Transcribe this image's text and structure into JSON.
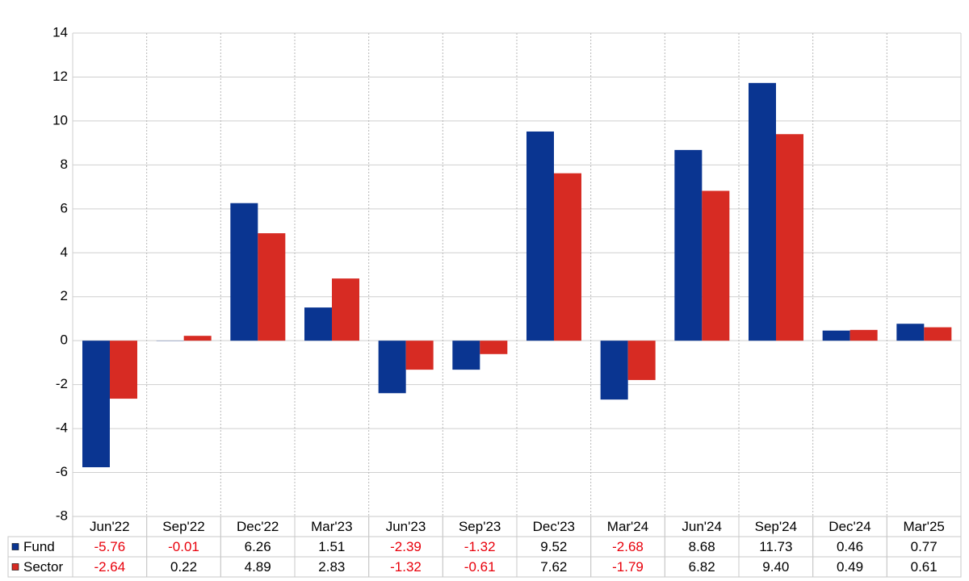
{
  "chart_data": {
    "type": "bar",
    "categories": [
      "Jun'22",
      "Sep'22",
      "Dec'22",
      "Mar'23",
      "Jun'23",
      "Sep'23",
      "Dec'23",
      "Mar'24",
      "Jun'24",
      "Sep'24",
      "Dec'24",
      "Mar'25"
    ],
    "series": [
      {
        "name": "Fund",
        "color": "#0a3591",
        "values": [
          -5.76,
          -0.01,
          6.26,
          1.51,
          -2.39,
          -1.32,
          9.52,
          -2.68,
          8.68,
          11.73,
          0.46,
          0.77
        ],
        "value_labels": [
          "-5.76",
          "-0.01",
          "6.26",
          "1.51",
          "-2.39",
          "-1.32",
          "9.52",
          "-2.68",
          "8.68",
          "11.73",
          "0.46",
          "0.77"
        ]
      },
      {
        "name": "Sector",
        "color": "#d72b23",
        "values": [
          -2.64,
          0.22,
          4.89,
          2.83,
          -1.32,
          -0.61,
          7.62,
          -1.79,
          6.82,
          9.4,
          0.49,
          0.61
        ],
        "value_labels": [
          "-2.64",
          "0.22",
          "4.89",
          "2.83",
          "-1.32",
          "-0.61",
          "7.62",
          "-1.79",
          "6.82",
          "9.40",
          "0.49",
          "0.61"
        ]
      }
    ],
    "ylim": [
      -8,
      14
    ],
    "yticks": [
      -8,
      -6,
      -4,
      -2,
      0,
      2,
      4,
      6,
      8,
      10,
      12,
      14
    ],
    "grid": true
  }
}
